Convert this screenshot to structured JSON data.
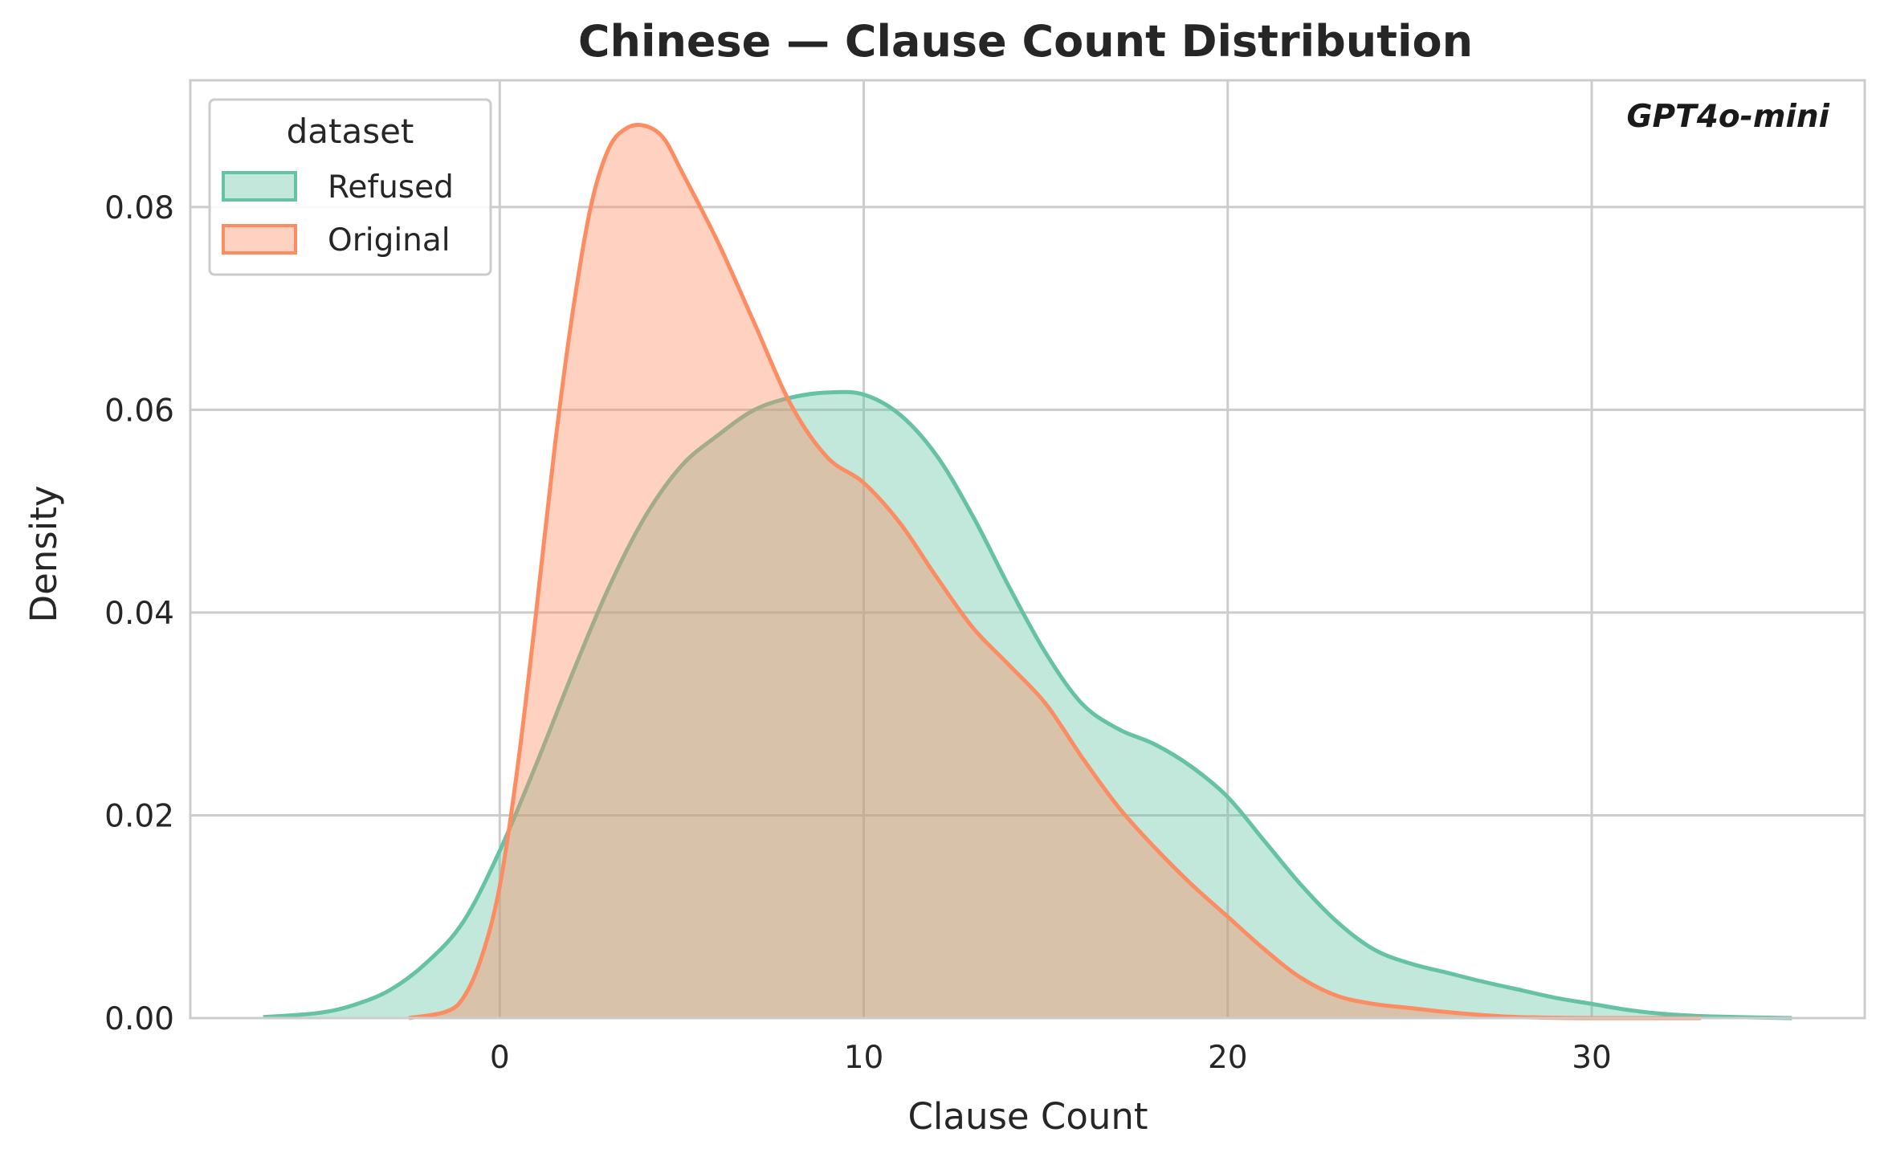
{
  "chart_data": {
    "type": "area",
    "title": "Chinese — Clause Count Distribution",
    "xlabel": "Clause Count",
    "ylabel": "Density",
    "xlim": [
      -8.5,
      37.5
    ],
    "ylim": [
      0,
      0.0925
    ],
    "x_ticks": [
      0,
      10,
      20,
      30
    ],
    "x_tick_labels": [
      "0",
      "10",
      "20",
      "30"
    ],
    "y_ticks": [
      0,
      0.02,
      0.04,
      0.06,
      0.08
    ],
    "y_tick_labels": [
      "0.00",
      "0.02",
      "0.04",
      "0.06",
      "0.08"
    ],
    "grid": true,
    "legend": {
      "title": "dataset",
      "position": "top-left",
      "entries": [
        "Refused",
        "Original"
      ]
    },
    "annotation": "GPT4o-mini",
    "series": [
      {
        "name": "Refused",
        "color": "#66c2a5",
        "fill_opacity": 0.4,
        "x": [
          -6.5,
          -5,
          -4,
          -3,
          -2,
          -1,
          0,
          1,
          2,
          3,
          4,
          5,
          6,
          7,
          8,
          9,
          10,
          11,
          12,
          13,
          14,
          15,
          16,
          17,
          18,
          19,
          20,
          21,
          22,
          23,
          24,
          25,
          26,
          27,
          28,
          29,
          30,
          31,
          32,
          33,
          34,
          35.5
        ],
        "y": [
          0.0001,
          0.0005,
          0.0013,
          0.0028,
          0.0055,
          0.0095,
          0.0165,
          0.025,
          0.034,
          0.0425,
          0.0495,
          0.0545,
          0.0575,
          0.06,
          0.0612,
          0.0617,
          0.0615,
          0.0595,
          0.0555,
          0.0495,
          0.0425,
          0.036,
          0.031,
          0.0285,
          0.027,
          0.0248,
          0.0218,
          0.0175,
          0.0132,
          0.0095,
          0.0068,
          0.0054,
          0.0045,
          0.0036,
          0.0028,
          0.002,
          0.0014,
          0.0008,
          0.0004,
          0.0002,
          0.0001,
          0.0
        ]
      },
      {
        "name": "Original",
        "color": "#fc8d62",
        "fill_opacity": 0.4,
        "x": [
          -2.5,
          -1.5,
          -1,
          -0.5,
          0,
          0.5,
          1,
          1.5,
          2,
          2.5,
          3,
          3.5,
          4,
          4.5,
          5,
          6,
          7,
          8,
          9,
          10,
          11,
          12,
          13,
          14,
          15,
          16,
          17,
          18,
          19,
          20,
          21,
          22,
          23,
          24,
          25,
          26,
          27,
          28,
          30,
          33
        ],
        "y": [
          0.0,
          0.0006,
          0.002,
          0.006,
          0.013,
          0.025,
          0.04,
          0.056,
          0.0695,
          0.08,
          0.0858,
          0.0878,
          0.088,
          0.0868,
          0.0835,
          0.0765,
          0.0685,
          0.0605,
          0.0553,
          0.0528,
          0.0488,
          0.0435,
          0.0385,
          0.0348,
          0.031,
          0.0257,
          0.0208,
          0.0168,
          0.0132,
          0.01,
          0.0068,
          0.004,
          0.0022,
          0.0014,
          0.001,
          0.0006,
          0.0003,
          0.0001,
          0.0,
          0.0
        ]
      }
    ]
  }
}
